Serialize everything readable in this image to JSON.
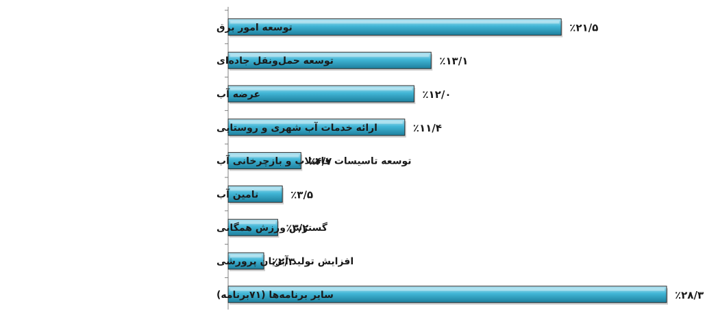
{
  "chart_data": {
    "type": "bar",
    "orientation": "horizontal",
    "categories": [
      "توسعه امور برق",
      "توسعه حمل‌ونقل جاده‌ای",
      "عرضه آب",
      "ارائه خدمات آب شهری و روستایی",
      "توسعه تاسیسات فاضلاب و بازچرخانی آب",
      "تامین آب",
      "گسترش ورزش همگانی",
      "افزایش تولید آبزیان پرورشی",
      "سایر برنامه‌ها (۷۱برنامه)"
    ],
    "values": [
      21.5,
      13.1,
      12.0,
      11.4,
      4.7,
      3.5,
      3.2,
      2.3,
      28.3
    ],
    "value_labels": [
      "٪۲۱/۵",
      "٪۱۳/۱",
      "٪۱۲/۰",
      "٪۱۱/۴",
      "٪۴/۷",
      "٪۳/۵",
      "٪۳/۲",
      "٪۲/۳",
      "٪۲۸/۳"
    ],
    "unit": "%",
    "xlim": [
      0,
      28.3
    ],
    "grid": false,
    "legend": "none",
    "colors": {
      "bar_top": "#b9e6f3",
      "bar_mid": "#41b6d6",
      "bar_bottom": "#1d7f9d",
      "bar_edge": "#2b2b2b",
      "axis": "#7f7f7f",
      "text": "#1a1a1a"
    }
  }
}
